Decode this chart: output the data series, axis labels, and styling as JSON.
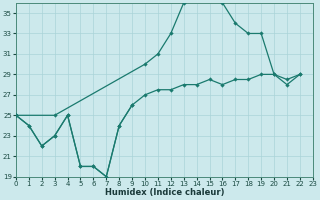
{
  "xlabel": "Humidex (Indice chaleur)",
  "bg_color": "#cce9ec",
  "grid_color": "#aad4d8",
  "line_color": "#1a7a6e",
  "xlim": [
    0,
    23
  ],
  "ylim": [
    19,
    36
  ],
  "yticks": [
    19,
    21,
    23,
    25,
    27,
    29,
    31,
    33,
    35
  ],
  "xticks": [
    0,
    1,
    2,
    3,
    4,
    5,
    6,
    7,
    8,
    9,
    10,
    11,
    12,
    13,
    14,
    15,
    16,
    17,
    18,
    19,
    20,
    21,
    22,
    23
  ],
  "line1_x": [
    0,
    1,
    2,
    3,
    4,
    5,
    6,
    7,
    8,
    9
  ],
  "line1_y": [
    25,
    24,
    22,
    23,
    25,
    20,
    20,
    19,
    24,
    26
  ],
  "line2_x": [
    0,
    3,
    10,
    11,
    12,
    13,
    14,
    15,
    16,
    17,
    18,
    19,
    20,
    21,
    22
  ],
  "line2_y": [
    25,
    25,
    30,
    31,
    33,
    36,
    36.5,
    36.5,
    36,
    34,
    33,
    33,
    29,
    28.5,
    29
  ],
  "line3_x": [
    0,
    1,
    2,
    3,
    4,
    5,
    6,
    7,
    8,
    9,
    10,
    11,
    12,
    13,
    14,
    15,
    16,
    17,
    18,
    19,
    20,
    21,
    22
  ],
  "line3_y": [
    25,
    24,
    22,
    23,
    25,
    20,
    20,
    19,
    24,
    26,
    27,
    27.5,
    27.5,
    28,
    28,
    28.5,
    28,
    28.5,
    28.5,
    29,
    29,
    28,
    29
  ]
}
